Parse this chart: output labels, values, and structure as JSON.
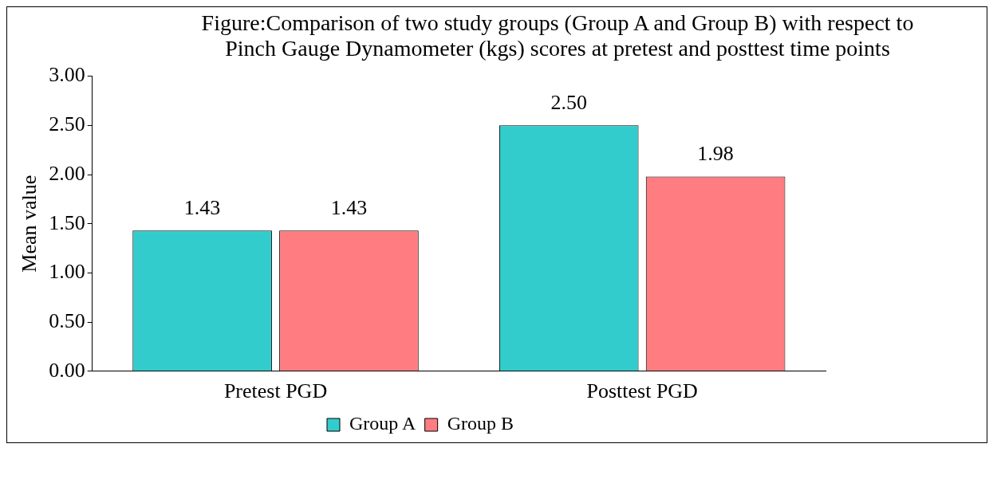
{
  "chart_data": {
    "type": "bar",
    "title": "Figure:Comparison of two study groups (Group A and Group B) with respect to Pinch Gauge Dynamometer (kgs) scores at pretest and posttest time points",
    "ylabel": "Mean value",
    "categories": [
      "Pretest PGD",
      "Posttest PGD"
    ],
    "series": [
      {
        "name": "Group A",
        "color": "#33cccc",
        "values": [
          1.43,
          2.5
        ],
        "value_labels": [
          "1.43",
          "2.50"
        ]
      },
      {
        "name": "Group B",
        "color": "#ff7c80",
        "values": [
          1.43,
          1.98
        ],
        "value_labels": [
          "1.43",
          "1.98"
        ]
      }
    ],
    "ylim": [
      0,
      3
    ],
    "yticks": [
      {
        "value": 0,
        "label": "0.00"
      },
      {
        "value": 0.5,
        "label": "0.50"
      },
      {
        "value": 1,
        "label": "1.00"
      },
      {
        "value": 1.5,
        "label": "1.50"
      },
      {
        "value": 2,
        "label": "2.00"
      },
      {
        "value": 2.5,
        "label": "2.50"
      },
      {
        "value": 3,
        "label": "3.00"
      }
    ],
    "grid": false,
    "legend": "bottom"
  }
}
